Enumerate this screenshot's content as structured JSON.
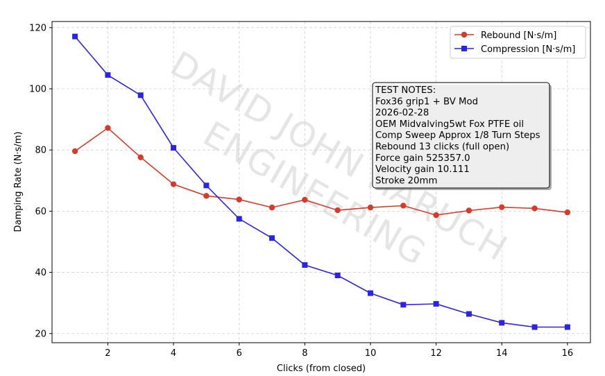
{
  "chart_data": {
    "type": "line",
    "xlabel": "Clicks (from closed)",
    "ylabel": "Damping Rate (N·s/m)",
    "xlim": [
      0.3,
      16.7
    ],
    "ylim": [
      17,
      122
    ],
    "xticks": [
      2,
      4,
      6,
      8,
      10,
      12,
      14,
      16
    ],
    "yticks": [
      20,
      40,
      60,
      80,
      100,
      120
    ],
    "grid": true,
    "legend_position": "top-right",
    "x": [
      1,
      2,
      3,
      4,
      5,
      6,
      7,
      8,
      9,
      10,
      11,
      12,
      13,
      14,
      15,
      16
    ],
    "series": [
      {
        "name": "Rebound [N·s/m]",
        "color": "#d63b2a",
        "marker": "circle",
        "values": [
          79.6,
          87.2,
          77.6,
          68.8,
          65.0,
          63.8,
          61.2,
          63.7,
          60.3,
          61.2,
          61.8,
          58.7,
          60.2,
          61.3,
          60.9,
          59.6
        ]
      },
      {
        "name": "Compression [N·s/m]",
        "color": "#2b24e6",
        "marker": "square",
        "values": [
          117.1,
          104.5,
          97.9,
          80.7,
          68.4,
          57.5,
          51.2,
          42.4,
          39.0,
          33.2,
          29.4,
          29.7,
          26.4,
          23.5,
          22.1,
          22.1
        ]
      }
    ],
    "annotation": {
      "lines": [
        "TEST NOTES:",
        "Fox36 grip1 + BV Mod",
        "2026-02-28",
        "OEM Midvalving5wt Fox PTFE oil",
        "Comp Sweep Approx 1/8 Turn Steps",
        "Rebound 13 clicks (full open)",
        "Force gain 525357.0",
        "Velocity gain 10.111",
        "Stroke 20mm"
      ]
    },
    "watermark": [
      "DAVID JOHN HARUCH",
      "ENGINEERING"
    ]
  }
}
